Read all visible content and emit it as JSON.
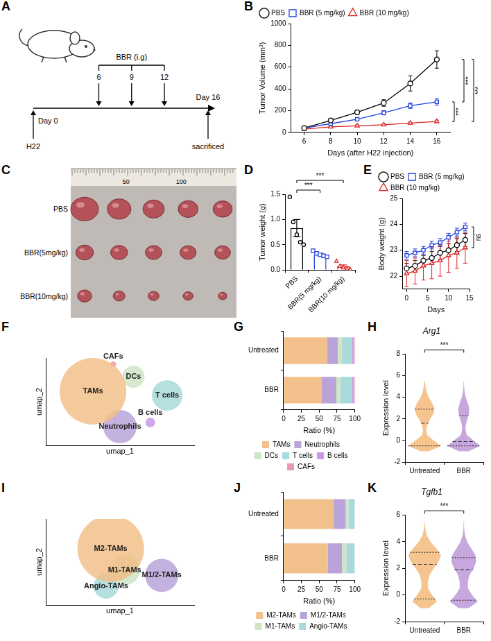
{
  "panel_A": {
    "panel": "A",
    "treatment": "BBR (i.g)",
    "dose_days": [
      6,
      9,
      12
    ],
    "start": "Day 0",
    "inoculation": "H22",
    "end": "Day 16",
    "end_event": "sacrificed"
  },
  "panel_C": {
    "panel": "C",
    "ruler_labels": [
      "50",
      "100"
    ],
    "rows": [
      "PBS",
      "BBR(5mg/kg)",
      "BBR(10mg/kg)"
    ]
  },
  "chart_data": [
    {
      "panel": "B",
      "type": "line",
      "xlabel": "Days (after H22 injection)",
      "ylabel": "Tumor Volume (mm³)",
      "x": [
        6,
        8,
        10,
        12,
        14,
        16
      ],
      "xlim": [
        5,
        17
      ],
      "xticks": [
        6,
        8,
        10,
        12,
        14,
        16
      ],
      "ylim": [
        0,
        1000
      ],
      "yticks": [
        0,
        200,
        400,
        600,
        800,
        1000
      ],
      "grid": false,
      "legend": "top-left",
      "series": [
        {
          "name": "PBS",
          "color": "#000000",
          "marker": "circle",
          "values": [
            40,
            110,
            185,
            270,
            450,
            670
          ],
          "errors": [
            5,
            15,
            20,
            30,
            70,
            80
          ]
        },
        {
          "name": "BBR (5 mg/kg)",
          "color": "#2040e0",
          "marker": "square",
          "values": [
            40,
            80,
            120,
            180,
            245,
            280
          ],
          "errors": [
            4,
            10,
            15,
            20,
            25,
            30
          ]
        },
        {
          "name": "BBR (10 mg/kg)",
          "color": "#e02020",
          "marker": "triangle",
          "values": [
            30,
            50,
            60,
            70,
            85,
            100
          ],
          "errors": [
            3,
            5,
            8,
            8,
            10,
            12
          ]
        }
      ],
      "annotations": [
        {
          "text": "***",
          "between": [
            "BBR (5 mg/kg)",
            "BBR (10 mg/kg)"
          ]
        },
        {
          "text": "***",
          "between": [
            "PBS",
            "BBR (5 mg/kg)"
          ]
        },
        {
          "text": "***",
          "between": [
            "PBS",
            "BBR (10 mg/kg)"
          ]
        }
      ]
    },
    {
      "panel": "D",
      "type": "bar",
      "ylabel": "Tumor weight (g)",
      "categories": [
        "PBS",
        "BBR(5 mg/kg)",
        "BBR(10 mg/kg)"
      ],
      "values": [
        0.83,
        0.31,
        0.07
      ],
      "errors": [
        0.17,
        0.02,
        0.03
      ],
      "points": [
        [
          1.45,
          0.95,
          0.7,
          0.55,
          0.5
        ],
        [
          0.38,
          0.33,
          0.3,
          0.28,
          0.26
        ],
        [
          0.18,
          0.08,
          0.05,
          0.03,
          0.01
        ]
      ],
      "colors": [
        "#000000",
        "#2040e0",
        "#e02020"
      ],
      "marker": [
        "circle",
        "square",
        "triangle"
      ],
      "ylim": [
        0,
        1.5
      ],
      "yticks": [
        {
          "value": 0,
          "label": "0.0"
        },
        {
          "value": 0.5,
          "label": "0.5"
        },
        {
          "value": 1,
          "label": "1.0"
        },
        {
          "value": 1.5,
          "label": "1.5"
        }
      ],
      "grid": false,
      "annotations": [
        {
          "text": "***",
          "between": [
            "PBS",
            "BBR(5 mg/kg)"
          ]
        },
        {
          "text": "***",
          "between": [
            "PBS",
            "BBR(10 mg/kg)"
          ]
        }
      ]
    },
    {
      "panel": "E",
      "type": "line",
      "xlabel": "Days",
      "ylabel": "Body weight (g)",
      "x": [
        0,
        2,
        4,
        6,
        8,
        10,
        12,
        14
      ],
      "xlim": [
        -1,
        15
      ],
      "xticks": [
        0,
        5,
        10,
        15
      ],
      "ylim": [
        21.5,
        25
      ],
      "yticks": [
        22,
        23,
        24,
        25
      ],
      "grid": false,
      "legend": "top-left",
      "series": [
        {
          "name": "PBS",
          "color": "#000000",
          "marker": "circle",
          "values": [
            22.3,
            22.4,
            22.6,
            22.7,
            22.9,
            23.0,
            23.2,
            23.4
          ],
          "errors": [
            0.2,
            0.2,
            0.2,
            0.25,
            0.25,
            0.25,
            0.25,
            0.25
          ]
        },
        {
          "name": "BBR (5 mg/kg)",
          "color": "#2040e0",
          "marker": "square",
          "values": [
            22.8,
            22.9,
            23.0,
            23.2,
            23.3,
            23.5,
            23.7,
            23.9
          ],
          "errors": [
            0.15,
            0.15,
            0.15,
            0.15,
            0.15,
            0.15,
            0.15,
            0.15
          ]
        },
        {
          "name": "BBR (10 mg/kg)",
          "color": "#e02020",
          "marker": "triangle",
          "values": [
            22.1,
            22.2,
            22.4,
            22.5,
            22.6,
            22.8,
            22.9,
            23.1
          ],
          "errors": [
            0.5,
            0.5,
            0.55,
            0.6,
            0.6,
            0.65,
            0.6,
            0.6
          ]
        }
      ],
      "annotations": [
        {
          "text": "ns",
          "between": [
            "BBR (5 mg/kg)",
            "BBR (10 mg/kg)"
          ]
        }
      ]
    },
    {
      "panel": "F",
      "type": "bubble",
      "xlabel": "umap_1",
      "ylabel": "umap_2",
      "xlim": [
        -10,
        12
      ],
      "ylim": [
        -10,
        11
      ],
      "tick_labels": false,
      "grid": false,
      "series": [
        {
          "name": "TAMs",
          "color": "#F2C08A",
          "x": [
            -3
          ],
          "y": [
            3
          ],
          "size": [
            48
          ]
        },
        {
          "name": "DCs",
          "color": "#CFE5C6",
          "x": [
            3
          ],
          "y": [
            6.5
          ],
          "size": [
            16
          ]
        },
        {
          "name": "CAFs",
          "color": "#E89AAE",
          "x": [
            0
          ],
          "y": [
            9.5
          ],
          "size": [
            4
          ]
        },
        {
          "name": "T cells",
          "color": "#A9D9DB",
          "x": [
            8
          ],
          "y": [
            2
          ],
          "size": [
            22
          ]
        },
        {
          "name": "Neutrophils",
          "color": "#B9A3D9",
          "x": [
            1
          ],
          "y": [
            -5.5
          ],
          "size": [
            24
          ]
        },
        {
          "name": "B cells",
          "color": "#C89AE6",
          "x": [
            5.5
          ],
          "y": [
            -4.5
          ],
          "size": [
            7
          ]
        }
      ]
    },
    {
      "panel": "G",
      "type": "bar",
      "orientation": "horizontal",
      "stacked": true,
      "categories": [
        "Untreated",
        "BBR"
      ],
      "xlabel": "Ratio (%)",
      "xlim": [
        0,
        100
      ],
      "xticks": [
        0,
        25,
        50,
        75,
        100
      ],
      "grid": false,
      "legend": "bottom",
      "series": [
        {
          "name": "TAMs",
          "color": "#F2C08A",
          "values": [
            61,
            53
          ]
        },
        {
          "name": "Neutrophils",
          "color": "#B9A3D9",
          "values": [
            15,
            21
          ]
        },
        {
          "name": "DCs",
          "color": "#CFE5C6",
          "values": [
            6,
            6
          ]
        },
        {
          "name": "T cells",
          "color": "#A9D9DB",
          "values": [
            14,
            16
          ]
        },
        {
          "name": "B cells",
          "color": "#C89AE6",
          "values": [
            2,
            2
          ]
        },
        {
          "name": "CAFs",
          "color": "#E89AAE",
          "values": [
            2,
            2
          ]
        }
      ]
    },
    {
      "panel": "H",
      "type": "violin",
      "title": "Arg1",
      "ylabel": "Expression level",
      "ylim": [
        -2,
        8
      ],
      "yticks": [
        -2,
        0,
        2,
        4,
        6,
        8
      ],
      "grid": false,
      "levels": [
        -1,
        -0.5,
        0,
        0.5,
        1,
        1.5,
        2,
        2.5,
        3,
        3.5,
        4,
        4.5,
        5,
        5.5
      ],
      "series": [
        {
          "name": "Untreated",
          "color": "#F6C48F",
          "density": [
            0.25,
            1.0,
            0.55,
            0.15,
            0.1,
            0.18,
            0.35,
            0.55,
            0.6,
            0.45,
            0.25,
            0.12,
            0.05,
            0.02
          ],
          "quartiles": [
            -0.5,
            1.6,
            2.9
          ]
        },
        {
          "name": "BBR",
          "color": "#C7A8DE",
          "density": [
            0.3,
            1.0,
            0.6,
            0.18,
            0.1,
            0.13,
            0.22,
            0.32,
            0.33,
            0.24,
            0.12,
            0.05,
            0.02,
            0.01
          ],
          "quartiles": [
            -0.5,
            -0.1,
            2.3
          ]
        }
      ],
      "annotations": [
        {
          "text": "***",
          "between": [
            "Untreated",
            "BBR"
          ]
        }
      ]
    },
    {
      "panel": "I",
      "type": "bubble",
      "xlabel": "umap_1",
      "ylabel": "umap_2",
      "xlim": [
        -8,
        8
      ],
      "ylim": [
        -8,
        8
      ],
      "tick_labels": false,
      "grid": false,
      "series": [
        {
          "name": "M2-TAMs",
          "color": "#F2C08A",
          "x": [
            -1
          ],
          "y": [
            2.5
          ],
          "size": [
            48
          ]
        },
        {
          "name": "M1-TAMs",
          "color": "#CFE5C6",
          "x": [
            0.5
          ],
          "y": [
            -1.5
          ],
          "size": [
            22
          ]
        },
        {
          "name": "M1/2-TAMs",
          "color": "#B9A3D9",
          "x": [
            4.5
          ],
          "y": [
            -2.5
          ],
          "size": [
            24
          ]
        },
        {
          "name": "Angio-TAMs",
          "color": "#A9D9DB",
          "x": [
            -1.5
          ],
          "y": [
            -4.5
          ],
          "size": [
            18
          ]
        }
      ]
    },
    {
      "panel": "J",
      "type": "bar",
      "orientation": "horizontal",
      "stacked": true,
      "categories": [
        "Untreated",
        "BBR"
      ],
      "xlabel": "Ratio (%)",
      "xlim": [
        0,
        100
      ],
      "xticks": [
        0,
        25,
        50,
        75,
        100
      ],
      "grid": false,
      "legend": "bottom",
      "series": [
        {
          "name": "M2-TAMs",
          "color": "#F2C08A",
          "values": [
            70,
            62
          ]
        },
        {
          "name": "M1/2-TAMs",
          "color": "#B9A3D9",
          "values": [
            17,
            20
          ]
        },
        {
          "name": "M1-TAMs",
          "color": "#CFE5C6",
          "values": [
            4,
            6
          ]
        },
        {
          "name": "Angio-TAMs",
          "color": "#A9D9DB",
          "values": [
            9,
            12
          ]
        }
      ]
    },
    {
      "panel": "K",
      "type": "violin",
      "title": "Tgfb1",
      "ylabel": "Expression level",
      "ylim": [
        -2,
        6
      ],
      "yticks": [
        -2,
        0,
        2,
        4,
        6
      ],
      "grid": false,
      "levels": [
        -1,
        -0.5,
        0,
        0.5,
        1,
        1.5,
        2,
        2.5,
        3,
        3.5,
        4,
        4.5,
        5,
        5.5
      ],
      "series": [
        {
          "name": "Untreated",
          "color": "#F6C48F",
          "density": [
            0.25,
            0.75,
            0.45,
            0.2,
            0.2,
            0.3,
            0.55,
            0.85,
            1.0,
            0.7,
            0.35,
            0.12,
            0.04,
            0.01
          ],
          "quartiles": [
            -0.3,
            2.3,
            3.2
          ]
        },
        {
          "name": "BBR",
          "color": "#C7A8DE",
          "density": [
            0.3,
            0.85,
            0.5,
            0.25,
            0.25,
            0.35,
            0.6,
            0.75,
            0.7,
            0.45,
            0.2,
            0.07,
            0.02,
            0.01
          ],
          "quartiles": [
            -0.4,
            1.9,
            2.8
          ]
        }
      ],
      "annotations": [
        {
          "text": "***",
          "between": [
            "Untreated",
            "BBR"
          ]
        }
      ]
    }
  ]
}
